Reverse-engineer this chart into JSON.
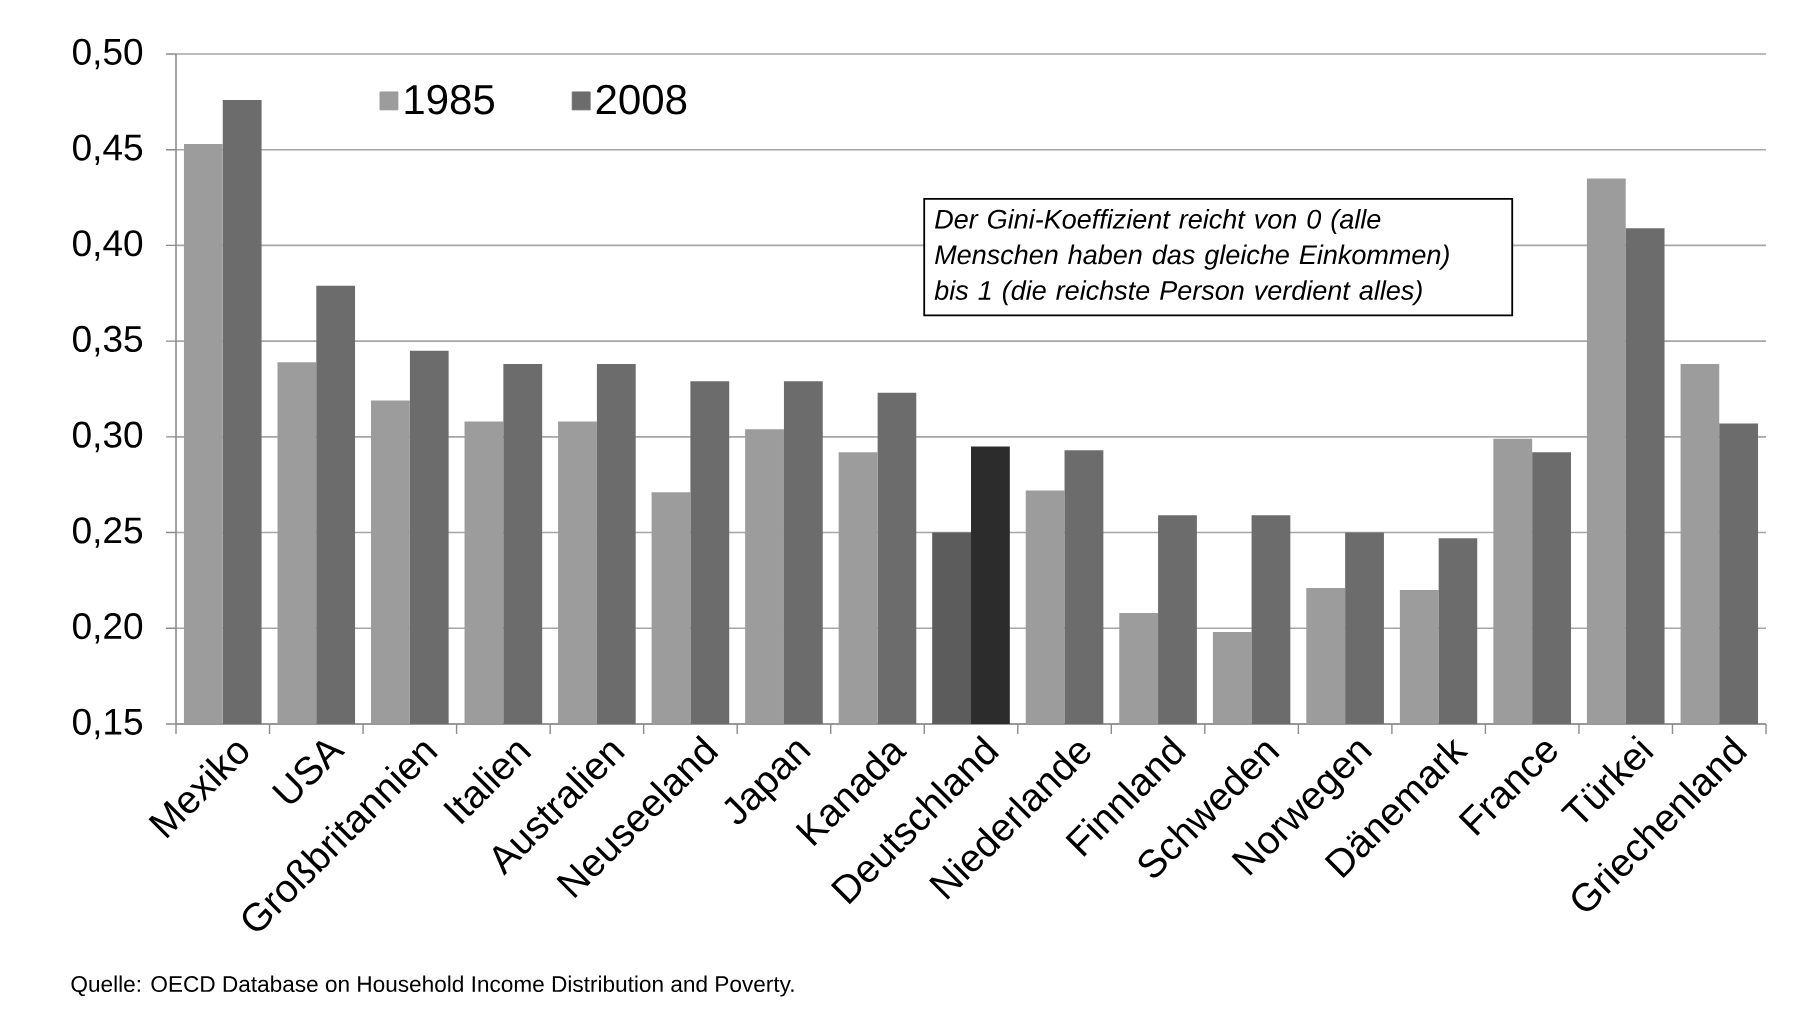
{
  "chart_data": {
    "type": "bar",
    "categories": [
      "Mexiko",
      "USA",
      "Großbritannien",
      "Italien",
      "Australien",
      "Neuseeland",
      "Japan",
      "Kanada",
      "Deutschland",
      "Niederlande",
      "Finnland",
      "Schweden",
      "Norwegen",
      "Dänemark",
      "France",
      "Türkei",
      "Griechenland"
    ],
    "series": [
      {
        "name": "1985",
        "color": "#9c9c9c",
        "colors": [
          "#9c9c9c",
          "#9c9c9c",
          "#9c9c9c",
          "#9c9c9c",
          "#9c9c9c",
          "#9c9c9c",
          "#9c9c9c",
          "#9c9c9c",
          "#5c5c5c",
          "#9c9c9c",
          "#9c9c9c",
          "#9c9c9c",
          "#9c9c9c",
          "#9c9c9c",
          "#9c9c9c",
          "#9c9c9c",
          "#9c9c9c"
        ],
        "values": [
          0.453,
          0.339,
          0.319,
          0.308,
          0.308,
          0.271,
          0.304,
          0.292,
          0.25,
          0.272,
          0.208,
          0.198,
          0.221,
          0.22,
          0.299,
          0.435,
          0.338
        ]
      },
      {
        "name": "2008",
        "color": "#6c6c6c",
        "colors": [
          "#6c6c6c",
          "#6c6c6c",
          "#6c6c6c",
          "#6c6c6c",
          "#6c6c6c",
          "#6c6c6c",
          "#6c6c6c",
          "#6c6c6c",
          "#2c2c2c",
          "#6c6c6c",
          "#6c6c6c",
          "#6c6c6c",
          "#6c6c6c",
          "#6c6c6c",
          "#6c6c6c",
          "#6c6c6c",
          "#6c6c6c"
        ],
        "values": [
          0.476,
          0.379,
          0.345,
          0.338,
          0.338,
          0.329,
          0.329,
          0.323,
          0.295,
          0.293,
          0.259,
          0.259,
          0.25,
          0.247,
          0.292,
          0.409,
          0.307
        ]
      }
    ],
    "ylim": [
      0.15,
      0.5
    ],
    "yticks": [
      {
        "value": 0.15,
        "label": "0,15"
      },
      {
        "value": 0.2,
        "label": "0,20"
      },
      {
        "value": 0.25,
        "label": "0,25"
      },
      {
        "value": 0.3,
        "label": "0,30"
      },
      {
        "value": 0.35,
        "label": "0,35"
      },
      {
        "value": 0.4,
        "label": "0,40"
      },
      {
        "value": 0.45,
        "label": "0,45"
      },
      {
        "value": 0.5,
        "label": "0,50"
      }
    ],
    "grid": "y",
    "legend": "top left",
    "annotations": [
      "Der Gini-Koeffizient reicht von 0 (alle Menschen haben das gleiche Einkommen) bis 1 (die reichste Person verdient alles)",
      "Quelle: OECD Database on Household Income Distribution and Poverty."
    ]
  }
}
